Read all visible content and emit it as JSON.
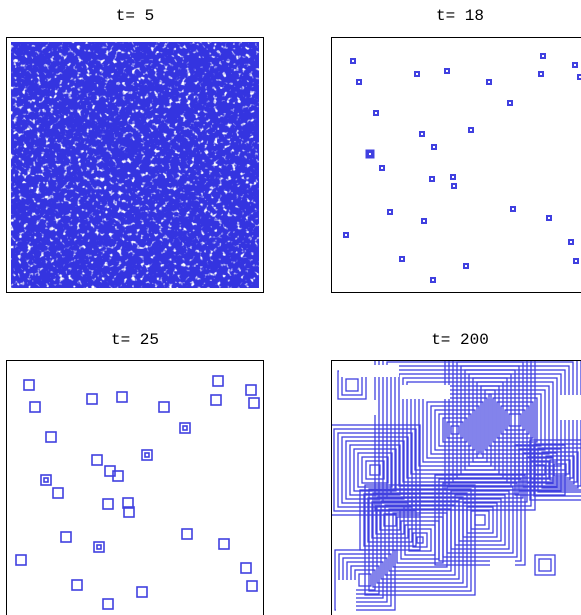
{
  "panels": [
    {
      "title": "t= 5"
    },
    {
      "title": "t= 18"
    },
    {
      "title": "t= 25"
    },
    {
      "title": "t= 200"
    }
  ]
}
